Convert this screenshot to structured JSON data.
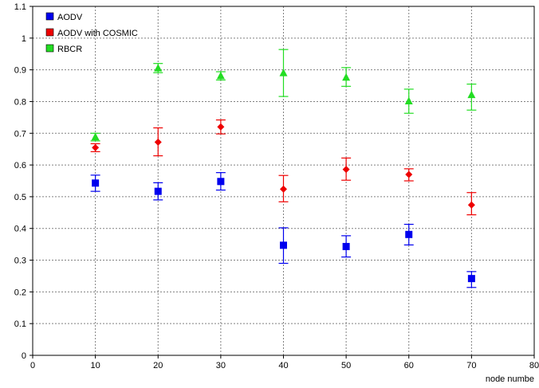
{
  "chart_data": {
    "type": "scatter",
    "title": "",
    "xlabel": "node numbe",
    "ylabel": "",
    "xlim": [
      0,
      80
    ],
    "ylim": [
      0,
      1.1
    ],
    "x_ticks": [
      0,
      10,
      20,
      30,
      40,
      50,
      60,
      70,
      80
    ],
    "y_ticks": [
      0,
      0.1,
      0.2,
      0.3,
      0.4,
      0.5,
      0.6,
      0.7,
      0.8,
      0.9,
      1,
      1.1
    ],
    "x_tick_labels": [
      "0",
      "10",
      "20",
      "30",
      "40",
      "50",
      "60",
      "70",
      "80"
    ],
    "y_tick_labels": [
      "0",
      "0.1",
      "0.2",
      "0.3",
      "0.4",
      "0.5",
      "0.6",
      "0.7",
      "0.8",
      "0.9",
      "1",
      "1.1"
    ],
    "grid": true,
    "legend_position": "top-left",
    "series": [
      {
        "name": "AODV",
        "color": "#0000ee",
        "marker": "square",
        "x": [
          10,
          20,
          30,
          40,
          50,
          60,
          70
        ],
        "y": [
          0.543,
          0.517,
          0.548,
          0.347,
          0.343,
          0.381,
          0.242
        ],
        "err_low": [
          0.517,
          0.49,
          0.521,
          0.29,
          0.31,
          0.348,
          0.214
        ],
        "err_high": [
          0.568,
          0.544,
          0.576,
          0.402,
          0.377,
          0.413,
          0.264
        ]
      },
      {
        "name": "AODV with COSMIC",
        "color": "#ee0000",
        "marker": "diamond",
        "x": [
          10,
          20,
          30,
          40,
          50,
          60,
          70
        ],
        "y": [
          0.655,
          0.672,
          0.72,
          0.524,
          0.586,
          0.57,
          0.474
        ],
        "err_low": [
          0.642,
          0.629,
          0.698,
          0.484,
          0.552,
          0.55,
          0.443
        ],
        "err_high": [
          0.667,
          0.717,
          0.742,
          0.567,
          0.622,
          0.588,
          0.513
        ]
      },
      {
        "name": "RBCR",
        "color": "#22dd22",
        "marker": "triangle",
        "x": [
          10,
          20,
          30,
          40,
          50,
          60,
          70
        ],
        "y": [
          0.688,
          0.905,
          0.881,
          0.89,
          0.876,
          0.801,
          0.821
        ],
        "err_low": [
          0.676,
          0.891,
          0.868,
          0.816,
          0.848,
          0.763,
          0.773
        ],
        "err_high": [
          0.7,
          0.92,
          0.894,
          0.964,
          0.907,
          0.839,
          0.855
        ]
      }
    ]
  }
}
